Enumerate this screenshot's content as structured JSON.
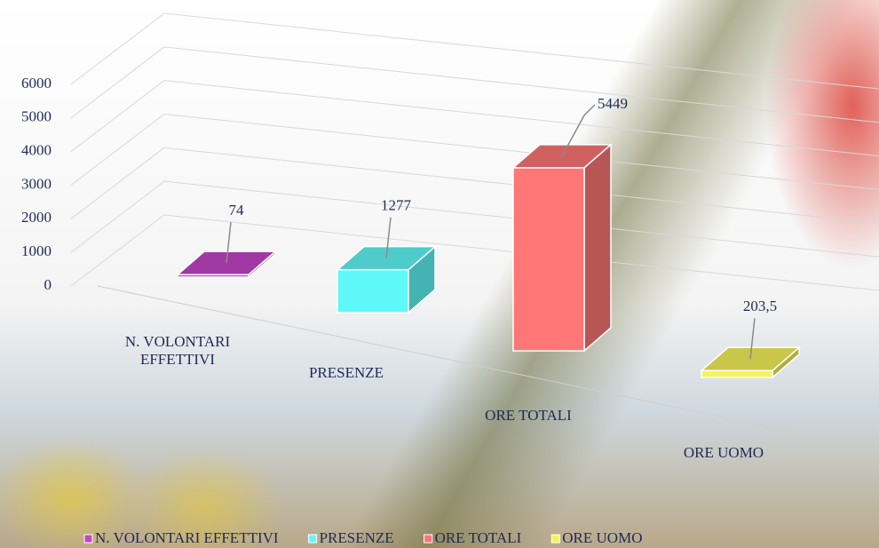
{
  "chart_data": {
    "type": "bar3d",
    "categories": [
      "N. VOLONTARI EFFETTIVI",
      "PRESENZE",
      "ORE TOTALI",
      "ORE UOMO"
    ],
    "values": [
      74,
      1277,
      5449,
      203.5
    ],
    "value_labels": [
      "74",
      "1277",
      "5449",
      "203,5"
    ],
    "colors": [
      "#c446c8",
      "#5ff8f8",
      "#ff7676",
      "#f6f25a"
    ],
    "ylim": [
      0,
      6000
    ],
    "yticks": [
      0,
      1000,
      2000,
      3000,
      4000,
      5000,
      6000
    ],
    "grid": true,
    "legend": "bottom"
  }
}
